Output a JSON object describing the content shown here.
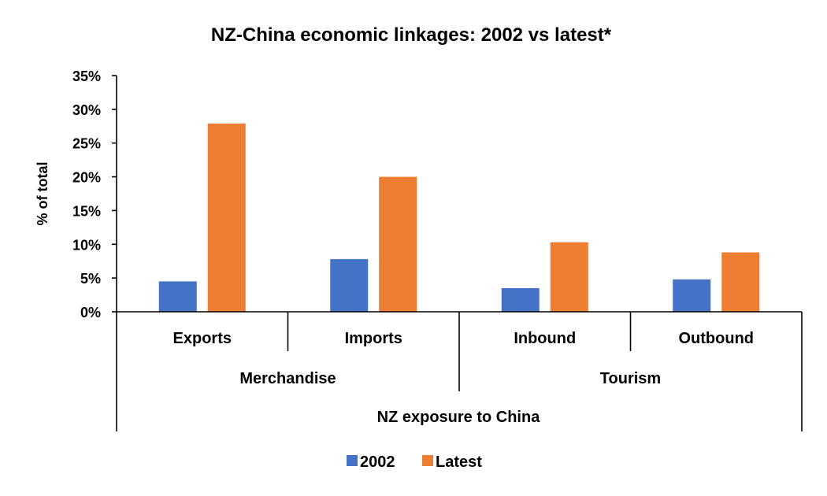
{
  "chart_data": {
    "type": "bar",
    "title": "NZ-China economic linkages: 2002 vs latest*",
    "ylabel": "% of total",
    "xlabel": "NZ exposure to China",
    "ylim": [
      0,
      35
    ],
    "yticks": [
      "0%",
      "5%",
      "10%",
      "15%",
      "20%",
      "25%",
      "30%",
      "35%"
    ],
    "ytick_values": [
      0,
      5,
      10,
      15,
      20,
      25,
      30,
      35
    ],
    "categories": [
      "Exports",
      "Imports",
      "Inbound",
      "Outbound"
    ],
    "groups": [
      {
        "label": "Merchandise",
        "categories": [
          "Exports",
          "Imports"
        ]
      },
      {
        "label": "Tourism",
        "categories": [
          "Inbound",
          "Outbound"
        ]
      }
    ],
    "series": [
      {
        "name": "2002",
        "color": "#4472C4",
        "values": [
          4.5,
          7.8,
          3.5,
          4.8
        ]
      },
      {
        "name": "Latest",
        "color": "#ED7D31",
        "values": [
          27.9,
          20.0,
          10.3,
          8.8
        ]
      }
    ],
    "legend_position": "bottom",
    "grid": false
  }
}
